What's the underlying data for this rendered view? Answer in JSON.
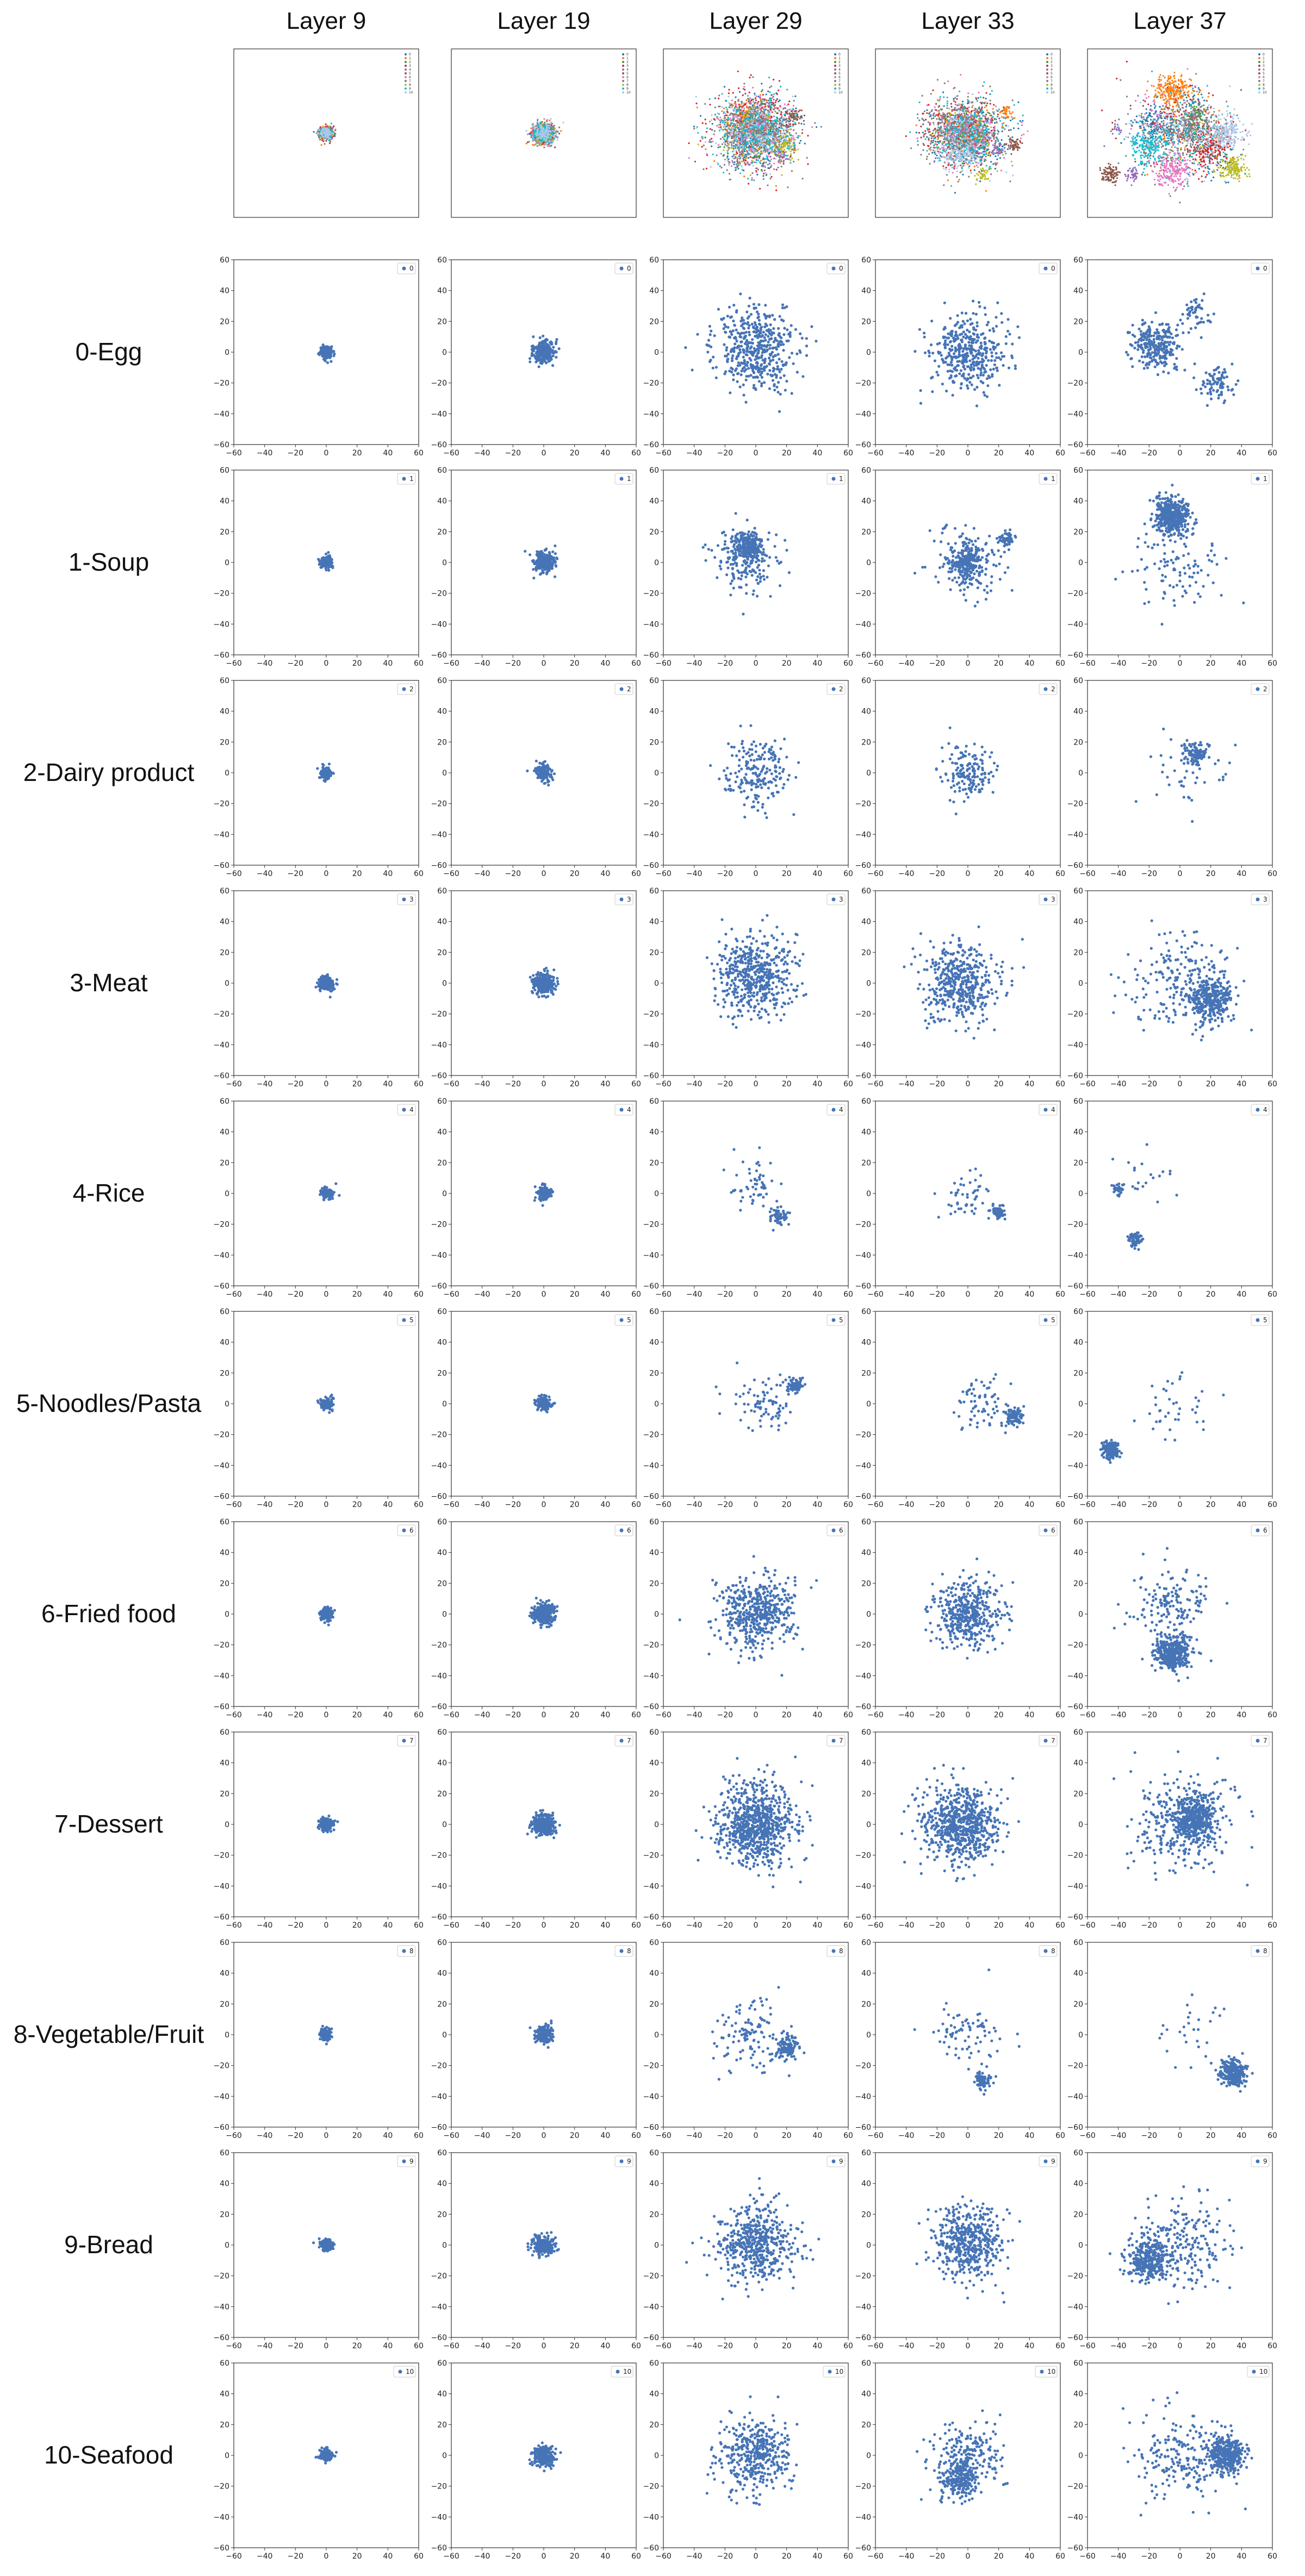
{
  "columns": [
    "Layer 9",
    "Layer 19",
    "Layer 29",
    "Layer 33",
    "Layer 37"
  ],
  "rows": [
    "0-Egg",
    "1-Soup",
    "2-Dairy product",
    "3-Meat",
    "4-Rice",
    "5-Noodles/Pasta",
    "6-Fried food",
    "7-Dessert",
    "8-Vegetable/Fruit",
    "9-Bread",
    "10-Seafood"
  ],
  "ticks": [
    "−60",
    "−40",
    "−20",
    "0",
    "20",
    "40",
    "60"
  ],
  "colors": {
    "point": "#4674b6",
    "axis": "#333333",
    "palette": [
      "#1f77b4",
      "#ff7f0e",
      "#2ca02c",
      "#d62728",
      "#9467bd",
      "#8c564b",
      "#e377c2",
      "#7f7f7f",
      "#bcbd22",
      "#17becf",
      "#aec7e8"
    ]
  },
  "chart_data": {
    "type": "scatter",
    "xlim": [
      -60,
      60
    ],
    "ylim": [
      -60,
      60
    ],
    "legend_position": "top-right",
    "grid": false,
    "overview_legend": [
      "0",
      "1",
      "2",
      "3",
      "4",
      "5",
      "6",
      "7",
      "8",
      "9",
      "10"
    ],
    "panels": [
      [
        {
          "legend": "0",
          "clusters": [
            {
              "cx": 0,
              "cy": 0,
              "r": 4,
              "n": 170
            }
          ]
        },
        {
          "legend": "0",
          "clusters": [
            {
              "cx": 0,
              "cy": 0,
              "r": 7,
              "n": 260
            }
          ]
        },
        {
          "legend": "0",
          "clusters": [
            {
              "cx": 0,
              "cy": 2,
              "r": 26,
              "n": 480
            }
          ]
        },
        {
          "legend": "0",
          "clusters": [
            {
              "cx": 0,
              "cy": 0,
              "r": 24,
              "n": 400
            }
          ]
        },
        {
          "legend": "0",
          "clusters": [
            {
              "cx": -15,
              "cy": 5,
              "r": 15,
              "n": 260
            },
            {
              "cx": 25,
              "cy": -20,
              "r": 12,
              "n": 80
            },
            {
              "cx": 10,
              "cy": 25,
              "r": 10,
              "n": 50
            }
          ]
        }
      ],
      [
        {
          "legend": "1",
          "clusters": [
            {
              "cx": 0,
              "cy": 0,
              "r": 4,
              "n": 170
            }
          ]
        },
        {
          "legend": "1",
          "clusters": [
            {
              "cx": 0,
              "cy": 0,
              "r": 7,
              "n": 260
            }
          ]
        },
        {
          "legend": "1",
          "clusters": [
            {
              "cx": -5,
              "cy": 10,
              "r": 9,
              "n": 250
            },
            {
              "cx": -5,
              "cy": 0,
              "r": 22,
              "n": 180
            }
          ]
        },
        {
          "legend": "1",
          "clusters": [
            {
              "cx": 0,
              "cy": 0,
              "r": 10,
              "n": 200
            },
            {
              "cx": 25,
              "cy": 15,
              "r": 5,
              "n": 60
            },
            {
              "cx": 0,
              "cy": 0,
              "r": 24,
              "n": 150
            }
          ]
        },
        {
          "legend": "1",
          "clusters": [
            {
              "cx": -5,
              "cy": 30,
              "r": 12,
              "n": 420
            },
            {
              "cx": 0,
              "cy": -5,
              "r": 30,
              "n": 100
            }
          ]
        }
      ],
      [
        {
          "legend": "2",
          "clusters": [
            {
              "cx": 0,
              "cy": 0,
              "r": 4,
              "n": 120
            }
          ]
        },
        {
          "legend": "2",
          "clusters": [
            {
              "cx": 0,
              "cy": 0,
              "r": 6,
              "n": 140
            }
          ]
        },
        {
          "legend": "2",
          "clusters": [
            {
              "cx": 0,
              "cy": 0,
              "r": 20,
              "n": 200
            }
          ]
        },
        {
          "legend": "2",
          "clusters": [
            {
              "cx": 0,
              "cy": 0,
              "r": 18,
              "n": 160
            }
          ]
        },
        {
          "legend": "2",
          "clusters": [
            {
              "cx": 10,
              "cy": 12,
              "r": 7,
              "n": 100
            },
            {
              "cx": 5,
              "cy": 0,
              "r": 25,
              "n": 40
            }
          ]
        }
      ],
      [
        {
          "legend": "3",
          "clusters": [
            {
              "cx": 0,
              "cy": 0,
              "r": 5,
              "n": 200
            }
          ]
        },
        {
          "legend": "3",
          "clusters": [
            {
              "cx": 0,
              "cy": 0,
              "r": 7,
              "n": 260
            }
          ]
        },
        {
          "legend": "3",
          "clusters": [
            {
              "cx": 0,
              "cy": 5,
              "r": 26,
              "n": 520
            }
          ]
        },
        {
          "legend": "3",
          "clusters": [
            {
              "cx": -5,
              "cy": 0,
              "r": 24,
              "n": 480
            }
          ]
        },
        {
          "legend": "3",
          "clusters": [
            {
              "cx": 20,
              "cy": -10,
              "r": 14,
              "n": 330
            },
            {
              "cx": 0,
              "cy": 0,
              "r": 32,
              "n": 220
            }
          ]
        }
      ],
      [
        {
          "legend": "4",
          "clusters": [
            {
              "cx": 0,
              "cy": 0,
              "r": 4,
              "n": 110
            }
          ]
        },
        {
          "legend": "4",
          "clusters": [
            {
              "cx": 0,
              "cy": 0,
              "r": 5,
              "n": 120
            }
          ]
        },
        {
          "legend": "4",
          "clusters": [
            {
              "cx": 15,
              "cy": -15,
              "r": 6,
              "n": 60
            },
            {
              "cx": 0,
              "cy": 5,
              "r": 18,
              "n": 60
            }
          ]
        },
        {
          "legend": "4",
          "clusters": [
            {
              "cx": 20,
              "cy": -12,
              "r": 5,
              "n": 60
            },
            {
              "cx": 0,
              "cy": 0,
              "r": 14,
              "n": 50
            }
          ]
        },
        {
          "legend": "4",
          "clusters": [
            {
              "cx": -30,
              "cy": -30,
              "r": 5,
              "n": 70
            },
            {
              "cx": -40,
              "cy": 3,
              "r": 4,
              "n": 25
            },
            {
              "cx": -20,
              "cy": 10,
              "r": 20,
              "n": 20
            }
          ]
        }
      ],
      [
        {
          "legend": "5",
          "clusters": [
            {
              "cx": 0,
              "cy": 0,
              "r": 4,
              "n": 110
            }
          ]
        },
        {
          "legend": "5",
          "clusters": [
            {
              "cx": 0,
              "cy": 0,
              "r": 5,
              "n": 130
            }
          ]
        },
        {
          "legend": "5",
          "clusters": [
            {
              "cx": 25,
              "cy": 12,
              "r": 5,
              "n": 90
            },
            {
              "cx": 5,
              "cy": 0,
              "r": 20,
              "n": 80
            }
          ]
        },
        {
          "legend": "5",
          "clusters": [
            {
              "cx": 30,
              "cy": -8,
              "r": 5,
              "n": 100
            },
            {
              "cx": 10,
              "cy": 0,
              "r": 18,
              "n": 70
            }
          ]
        },
        {
          "legend": "5",
          "clusters": [
            {
              "cx": -45,
              "cy": -30,
              "r": 6,
              "n": 160
            },
            {
              "cx": 0,
              "cy": -5,
              "r": 25,
              "n": 40
            }
          ]
        }
      ],
      [
        {
          "legend": "6",
          "clusters": [
            {
              "cx": 0,
              "cy": 0,
              "r": 4,
              "n": 150
            }
          ]
        },
        {
          "legend": "6",
          "clusters": [
            {
              "cx": 0,
              "cy": 0,
              "r": 7,
              "n": 240
            }
          ]
        },
        {
          "legend": "6",
          "clusters": [
            {
              "cx": 0,
              "cy": 0,
              "r": 24,
              "n": 500
            }
          ]
        },
        {
          "legend": "6",
          "clusters": [
            {
              "cx": 0,
              "cy": 0,
              "r": 22,
              "n": 440
            }
          ]
        },
        {
          "legend": "6",
          "clusters": [
            {
              "cx": -5,
              "cy": -25,
              "r": 12,
              "n": 350
            },
            {
              "cx": -5,
              "cy": 5,
              "r": 25,
              "n": 160
            }
          ]
        }
      ],
      [
        {
          "legend": "7",
          "clusters": [
            {
              "cx": 0,
              "cy": 0,
              "r": 4,
              "n": 200
            }
          ]
        },
        {
          "legend": "7",
          "clusters": [
            {
              "cx": 0,
              "cy": 0,
              "r": 7,
              "n": 300
            }
          ]
        },
        {
          "legend": "7",
          "clusters": [
            {
              "cx": 0,
              "cy": 0,
              "r": 26,
              "n": 800
            }
          ]
        },
        {
          "legend": "7",
          "clusters": [
            {
              "cx": -5,
              "cy": 0,
              "r": 24,
              "n": 700
            }
          ]
        },
        {
          "legend": "7",
          "clusters": [
            {
              "cx": 10,
              "cy": 5,
              "r": 14,
              "n": 400
            },
            {
              "cx": 0,
              "cy": 0,
              "r": 32,
              "n": 300
            }
          ]
        }
      ],
      [
        {
          "legend": "8",
          "clusters": [
            {
              "cx": 0,
              "cy": 0,
              "r": 4,
              "n": 110
            }
          ]
        },
        {
          "legend": "8",
          "clusters": [
            {
              "cx": 0,
              "cy": 0,
              "r": 6,
              "n": 180
            }
          ]
        },
        {
          "legend": "8",
          "clusters": [
            {
              "cx": 20,
              "cy": -8,
              "r": 8,
              "n": 120
            },
            {
              "cx": -5,
              "cy": 0,
              "r": 22,
              "n": 120
            }
          ]
        },
        {
          "legend": "8",
          "clusters": [
            {
              "cx": 10,
              "cy": -30,
              "r": 5,
              "n": 70
            },
            {
              "cx": 0,
              "cy": 0,
              "r": 24,
              "n": 80
            }
          ]
        },
        {
          "legend": "8",
          "clusters": [
            {
              "cx": 35,
              "cy": -25,
              "r": 8,
              "n": 260
            },
            {
              "cx": 10,
              "cy": 0,
              "r": 25,
              "n": 30
            }
          ]
        }
      ],
      [
        {
          "legend": "9",
          "clusters": [
            {
              "cx": 0,
              "cy": 0,
              "r": 4,
              "n": 160
            }
          ]
        },
        {
          "legend": "9",
          "clusters": [
            {
              "cx": 0,
              "cy": 0,
              "r": 7,
              "n": 260
            }
          ]
        },
        {
          "legend": "9",
          "clusters": [
            {
              "cx": 0,
              "cy": 0,
              "r": 24,
              "n": 520
            }
          ]
        },
        {
          "legend": "9",
          "clusters": [
            {
              "cx": 0,
              "cy": 0,
              "r": 23,
              "n": 480
            }
          ]
        },
        {
          "legend": "9",
          "clusters": [
            {
              "cx": -20,
              "cy": -10,
              "r": 13,
              "n": 340
            },
            {
              "cx": 5,
              "cy": 0,
              "r": 30,
              "n": 220
            }
          ]
        }
      ],
      [
        {
          "legend": "10",
          "clusters": [
            {
              "cx": 0,
              "cy": 0,
              "r": 4,
              "n": 160
            }
          ]
        },
        {
          "legend": "10",
          "clusters": [
            {
              "cx": 0,
              "cy": 0,
              "r": 7,
              "n": 240
            }
          ]
        },
        {
          "legend": "10",
          "clusters": [
            {
              "cx": 0,
              "cy": 0,
              "r": 24,
              "n": 420
            }
          ]
        },
        {
          "legend": "10",
          "clusters": [
            {
              "cx": -5,
              "cy": -15,
              "r": 12,
              "n": 220
            },
            {
              "cx": 0,
              "cy": 0,
              "r": 24,
              "n": 200
            }
          ]
        },
        {
          "legend": "10",
          "clusters": [
            {
              "cx": 30,
              "cy": 0,
              "r": 12,
              "n": 360
            },
            {
              "cx": 0,
              "cy": 0,
              "r": 30,
              "n": 200
            }
          ]
        }
      ]
    ]
  }
}
